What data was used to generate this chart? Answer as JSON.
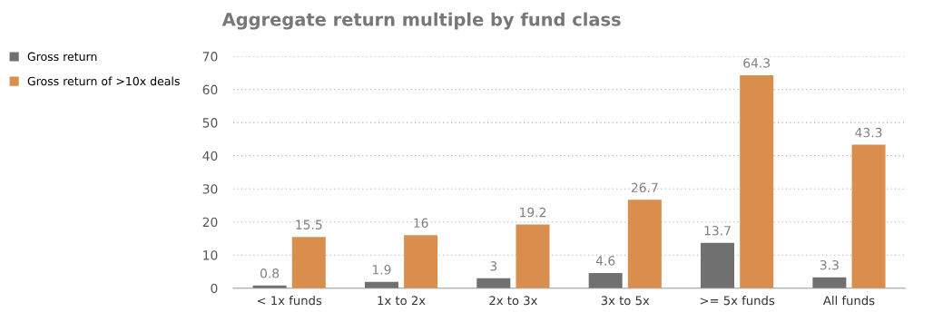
{
  "chart_data": {
    "type": "bar",
    "title": "Aggregate return multiple by fund class",
    "categories": [
      "< 1x funds",
      "1x to 2x",
      "2x to 3x",
      "3x to 5x",
      ">= 5x funds",
      "All funds"
    ],
    "series": [
      {
        "name": "Gross return",
        "color": "#707070",
        "values": [
          0.8,
          1.9,
          3,
          4.6,
          13.7,
          3.3
        ]
      },
      {
        "name": "Gross return of >10x deals",
        "color": "#d98e4e",
        "values": [
          15.5,
          16,
          19.2,
          26.7,
          64.3,
          43.3
        ]
      }
    ],
    "ylim": [
      0,
      70
    ],
    "yticks": [
      0,
      10,
      20,
      30,
      40,
      50,
      60,
      70
    ],
    "grid": "y",
    "legend": "left",
    "data_labels": true
  }
}
